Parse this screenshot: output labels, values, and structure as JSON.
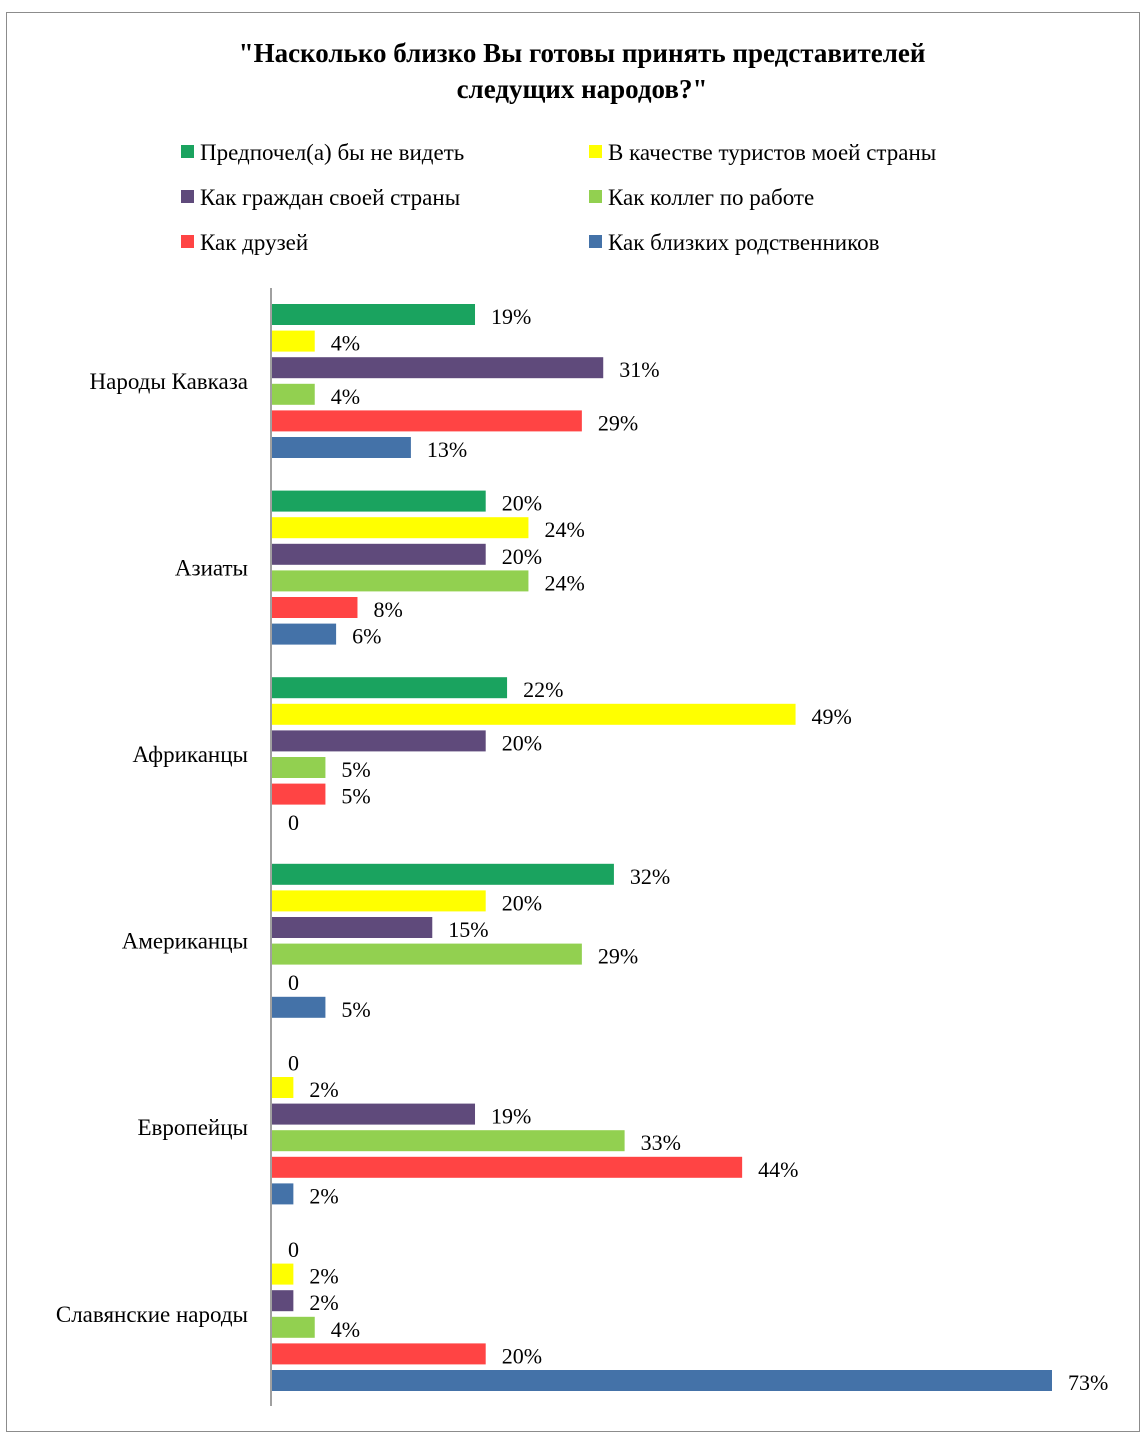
{
  "chart_data": {
    "type": "bar",
    "orientation": "horizontal",
    "title_lines": [
      "\"Насколько близко Вы готовы принять представителей",
      "следущих народов?\""
    ],
    "categories": [
      "Народы Кавказа",
      "Азиаты",
      "Африканцы",
      "Американцы",
      "Европейцы",
      "Славянские народы"
    ],
    "series": [
      {
        "name": "Предпочел(а) бы не видеть",
        "color": "#1aa35f",
        "values": [
          19,
          20,
          22,
          32,
          0,
          0
        ],
        "labels": [
          "19%",
          "20%",
          "22%",
          "32%",
          "0",
          "0"
        ]
      },
      {
        "name": "В качестве туристов моей страны",
        "color": "#ffff00",
        "values": [
          4,
          24,
          49,
          20,
          2,
          2
        ],
        "labels": [
          "4%",
          "24%",
          "49%",
          "20%",
          "2%",
          "2%"
        ]
      },
      {
        "name": "Как граждан своей страны",
        "color": "#5f4a7b",
        "values": [
          31,
          20,
          20,
          15,
          19,
          2
        ],
        "labels": [
          "31%",
          "20%",
          "20%",
          "15%",
          "19%",
          "2%"
        ]
      },
      {
        "name": "Как коллег по работе",
        "color": "#92d050",
        "values": [
          4,
          24,
          5,
          29,
          33,
          4
        ],
        "labels": [
          "4%",
          "24%",
          "5%",
          "29%",
          "33%",
          "4%"
        ]
      },
      {
        "name": "Как друзей",
        "color": "#ff4444",
        "values": [
          29,
          8,
          5,
          0,
          44,
          20
        ],
        "labels": [
          "29%",
          "8%",
          "5%",
          "0",
          "44%",
          "20%"
        ]
      },
      {
        "name": "Как близких родственников",
        "color": "#4472a8",
        "values": [
          13,
          6,
          0,
          5,
          2,
          73
        ],
        "labels": [
          "13%",
          "6%",
          "0",
          "5%",
          "2%",
          "73%"
        ]
      }
    ],
    "xlim": [
      0,
      73
    ],
    "grid": false,
    "legend_position": "top"
  }
}
